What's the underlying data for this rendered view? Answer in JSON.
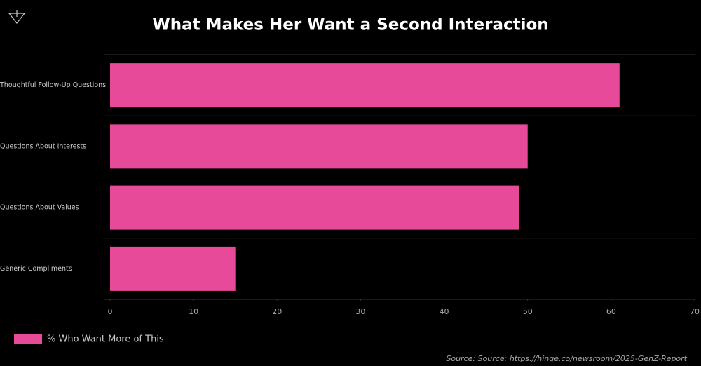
{
  "chart_data": {
    "type": "bar",
    "orientation": "horizontal",
    "title": "What Makes Her Want a Second Interaction",
    "categories": [
      "Thoughtful Follow-Up Questions",
      "Questions About Interests",
      "Questions About Values",
      "Generic Compliments"
    ],
    "series": [
      {
        "name": "% Who Want More of This",
        "color": "#e84a9a",
        "values": [
          61,
          50,
          49,
          15
        ]
      }
    ],
    "xlim": [
      0,
      70
    ],
    "xticks": [
      0,
      10,
      20,
      30,
      40,
      50,
      60,
      70
    ],
    "source": "Source: Source: https://hinge.co/newsroom/2025-GenZ-Report"
  }
}
